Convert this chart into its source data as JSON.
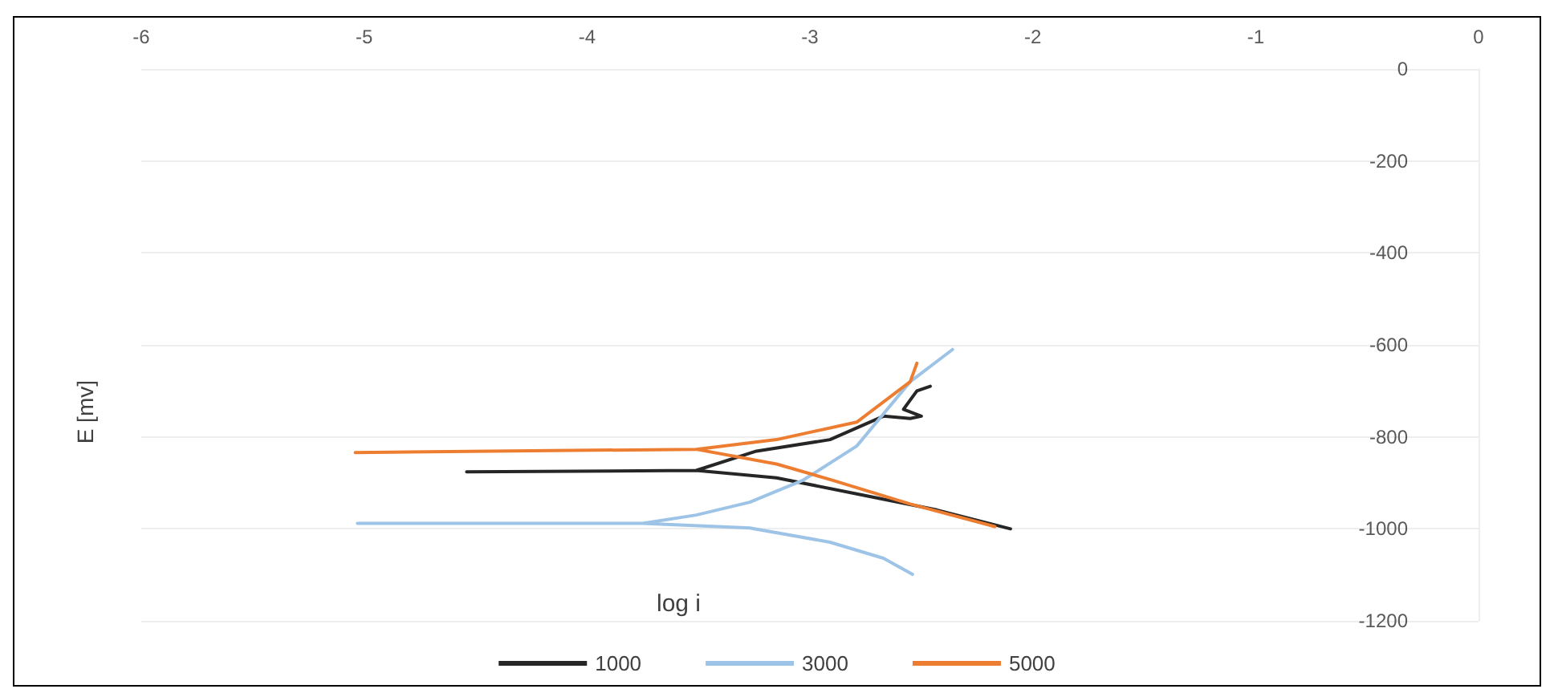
{
  "chart_data": {
    "type": "line",
    "xlabel": "log i",
    "ylabel": "E [mv]",
    "xlim": [
      -6,
      0
    ],
    "xticks": [
      -6,
      -5,
      -4,
      -3,
      -2,
      -1,
      0
    ],
    "ylim": [
      -1200,
      0
    ],
    "yticks": [
      -1200,
      -1000,
      -800,
      -600,
      -400,
      -200,
      0
    ],
    "grid": "y",
    "legend": "bottom",
    "marker": "none",
    "line_style": "solid",
    "series": [
      {
        "name": "1000",
        "color": "#262626",
        "x": [
          -2.1,
          -2.43,
          -2.79,
          -3.15,
          -3.51,
          -4.54,
          -3.51,
          -3.24,
          -2.91,
          -2.67,
          -2.55,
          -2.5,
          -2.58,
          -2.52,
          -2.46
        ],
        "values": [
          -1000,
          -959,
          -924,
          -889,
          -873,
          -876,
          -873,
          -831,
          -806,
          -755,
          -760,
          -755,
          -740,
          -700,
          -690
        ]
      },
      {
        "name": "3000",
        "color": "#9dc3e6",
        "x": [
          -2.54,
          -2.67,
          -2.91,
          -3.27,
          -3.75,
          -5.03,
          -3.75,
          -3.51,
          -3.27,
          -3.03,
          -2.79,
          -2.55,
          -2.36
        ],
        "values": [
          -1099,
          -1064,
          -1029,
          -998,
          -988,
          -988,
          -988,
          -970,
          -942,
          -894,
          -820,
          -680,
          -610
        ]
      },
      {
        "name": "5000",
        "color": "#ed7d31",
        "x": [
          -2.17,
          -2.55,
          -2.9,
          -3.15,
          -3.51,
          -5.04,
          -3.51,
          -3.15,
          -2.79,
          -2.55,
          -2.52
        ],
        "values": [
          -995,
          -946,
          -894,
          -859,
          -827,
          -834,
          -827,
          -806,
          -768,
          -680,
          -640
        ]
      }
    ]
  }
}
